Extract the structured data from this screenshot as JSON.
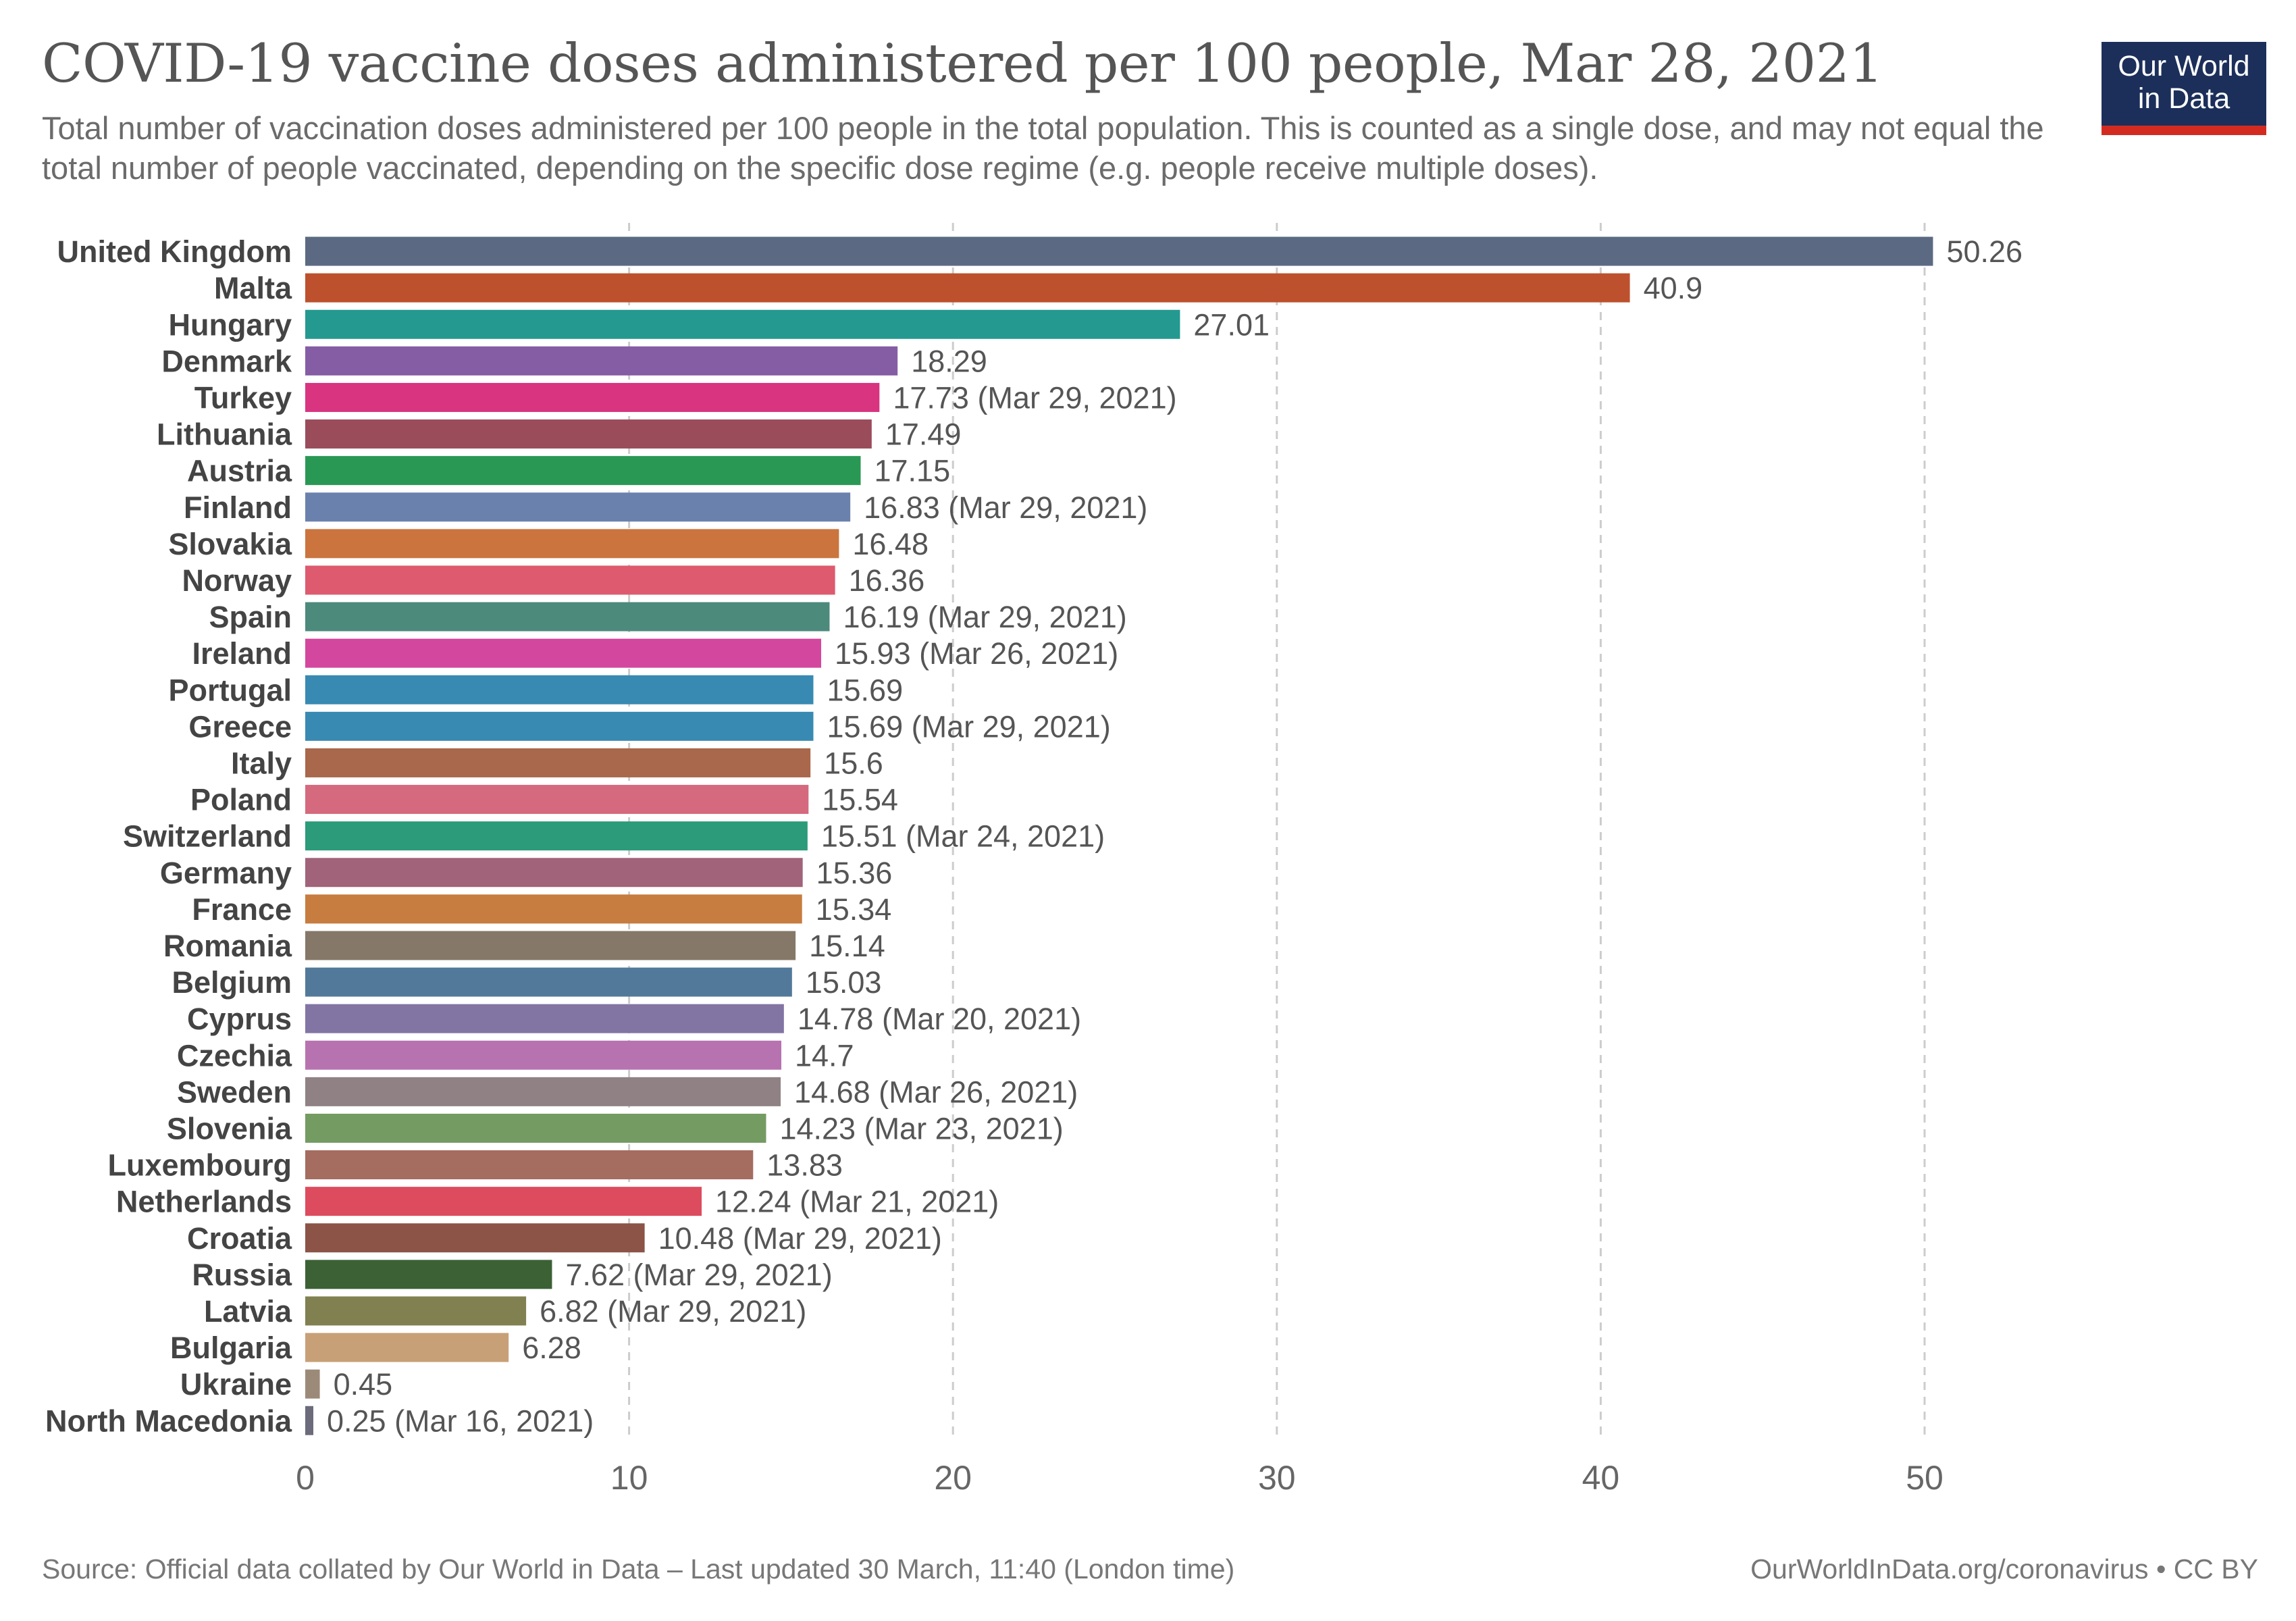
{
  "header": {
    "title": "COVID-19 vaccine doses administered per 100 people, Mar 28, 2021",
    "subtitle": "Total number of vaccination doses administered per 100 people in the total population. This is counted as a single dose, and may not equal the total number of people vaccinated, depending on the specific dose regime (e.g. people receive multiple doses).",
    "logo_line1": "Our World",
    "logo_line2": "in Data"
  },
  "footer": {
    "source": "Source: Official data collated by Our World in Data – Last updated 30 March, 11:40 (London time)",
    "credit": "OurWorldInData.org/coronavirus • CC BY"
  },
  "colors": {
    "logo_background": "#1c2f5a",
    "logo_accent": "#d42b21",
    "gridline": "#cccccc"
  },
  "chart_data": {
    "type": "bar",
    "orientation": "horizontal",
    "xlim": [
      0,
      50
    ],
    "xticks": [
      0,
      10,
      20,
      30,
      40,
      50
    ],
    "grid": "vertical-dashed",
    "bars": [
      {
        "category": "United Kingdom",
        "value": 50.26,
        "label": "50.26",
        "color": "#5b6a82"
      },
      {
        "category": "Malta",
        "value": 40.9,
        "label": "40.9",
        "color": "#bd512d"
      },
      {
        "category": "Hungary",
        "value": 27.01,
        "label": "27.01",
        "color": "#239990"
      },
      {
        "category": "Denmark",
        "value": 18.29,
        "label": "18.29",
        "color": "#855da4"
      },
      {
        "category": "Turkey",
        "value": 17.73,
        "label": "17.73 (Mar 29, 2021)",
        "color": "#d83480"
      },
      {
        "category": "Lithuania",
        "value": 17.49,
        "label": "17.49",
        "color": "#9a4c5b"
      },
      {
        "category": "Austria",
        "value": 17.15,
        "label": "17.15",
        "color": "#2a9855"
      },
      {
        "category": "Finland",
        "value": 16.83,
        "label": "16.83 (Mar 29, 2021)",
        "color": "#6b81ad"
      },
      {
        "category": "Slovakia",
        "value": 16.48,
        "label": "16.48",
        "color": "#cb743d"
      },
      {
        "category": "Norway",
        "value": 16.36,
        "label": "16.36",
        "color": "#de5a6e"
      },
      {
        "category": "Spain",
        "value": 16.19,
        "label": "16.19 (Mar 29, 2021)",
        "color": "#4c8a7c"
      },
      {
        "category": "Ireland",
        "value": 15.93,
        "label": "15.93 (Mar 26, 2021)",
        "color": "#d4479e"
      },
      {
        "category": "Portugal",
        "value": 15.69,
        "label": "15.69",
        "color": "#388ab3"
      },
      {
        "category": "Greece",
        "value": 15.69,
        "label": "15.69 (Mar 29, 2021)",
        "color": "#388ab3"
      },
      {
        "category": "Italy",
        "value": 15.6,
        "label": "15.6",
        "color": "#a9674b"
      },
      {
        "category": "Poland",
        "value": 15.54,
        "label": "15.54",
        "color": "#d5697d"
      },
      {
        "category": "Switzerland",
        "value": 15.51,
        "label": "15.51 (Mar 24, 2021)",
        "color": "#2b9b79"
      },
      {
        "category": "Germany",
        "value": 15.36,
        "label": "15.36",
        "color": "#a0637a"
      },
      {
        "category": "France",
        "value": 15.34,
        "label": "15.34",
        "color": "#c67d3f"
      },
      {
        "category": "Romania",
        "value": 15.14,
        "label": "15.14",
        "color": "#857868"
      },
      {
        "category": "Belgium",
        "value": 15.03,
        "label": "15.03",
        "color": "#527999"
      },
      {
        "category": "Cyprus",
        "value": 14.78,
        "label": "14.78 (Mar 20, 2021)",
        "color": "#8275a4"
      },
      {
        "category": "Czechia",
        "value": 14.7,
        "label": "14.7",
        "color": "#b773b0"
      },
      {
        "category": "Sweden",
        "value": 14.68,
        "label": "14.68 (Mar 26, 2021)",
        "color": "#8f8184"
      },
      {
        "category": "Slovenia",
        "value": 14.23,
        "label": "14.23 (Mar 23, 2021)",
        "color": "#739b62"
      },
      {
        "category": "Luxembourg",
        "value": 13.83,
        "label": "13.83",
        "color": "#a56c60"
      },
      {
        "category": "Netherlands",
        "value": 12.24,
        "label": "12.24 (Mar 21, 2021)",
        "color": "#dd4b5f"
      },
      {
        "category": "Croatia",
        "value": 10.48,
        "label": "10.48 (Mar 29, 2021)",
        "color": "#8c5347"
      },
      {
        "category": "Russia",
        "value": 7.62,
        "label": "7.62 (Mar 29, 2021)",
        "color": "#3b6135"
      },
      {
        "category": "Latvia",
        "value": 6.82,
        "label": "6.82 (Mar 29, 2021)",
        "color": "#808051"
      },
      {
        "category": "Bulgaria",
        "value": 6.28,
        "label": "6.28",
        "color": "#c8a077"
      },
      {
        "category": "Ukraine",
        "value": 0.45,
        "label": "0.45",
        "color": "#9c8a79"
      },
      {
        "category": "North Macedonia",
        "value": 0.25,
        "label": "0.25 (Mar 16, 2021)",
        "color": "#6b6b7c"
      }
    ]
  }
}
